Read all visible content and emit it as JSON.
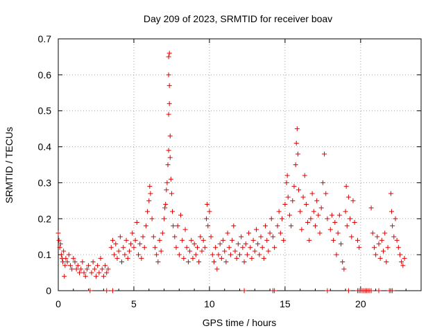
{
  "chart_data": {
    "type": "scatter",
    "title": "Day 209 of 2023, SRMTID for receiver boav",
    "xlabel": "GPS time / hours",
    "ylabel": "SRMTID / TECUs",
    "xlim": [
      0,
      24
    ],
    "ylim": [
      0,
      0.7
    ],
    "xticks": [
      0,
      5,
      10,
      15,
      20
    ],
    "yticks": [
      0,
      0.1,
      0.2,
      0.3,
      0.4,
      0.5,
      0.6,
      0.7
    ],
    "xtick_labels": [
      "0",
      "5",
      "10",
      "15",
      "20"
    ],
    "ytick_labels": [
      "0",
      "0.1",
      "0.2",
      "0.3",
      "0.4",
      "0.5",
      "0.6",
      "0.7"
    ],
    "grid": true,
    "marker": "+",
    "series_color": "#e00000",
    "points": [
      [
        0.0,
        0.16
      ],
      [
        0.05,
        0.14
      ],
      [
        0.1,
        0.12
      ],
      [
        0.15,
        0.13
      ],
      [
        0.2,
        0.1
      ],
      [
        0.25,
        0.09
      ],
      [
        0.3,
        0.08
      ],
      [
        0.35,
        0.11
      ],
      [
        0.4,
        0.04
      ],
      [
        0.45,
        0.07
      ],
      [
        0.5,
        0.09
      ],
      [
        0.6,
        0.08
      ],
      [
        0.7,
        0.1
      ],
      [
        0.8,
        0.07
      ],
      [
        0.9,
        0.06
      ],
      [
        1.0,
        0.09
      ],
      [
        1.1,
        0.08
      ],
      [
        1.2,
        0.06
      ],
      [
        1.3,
        0.07
      ],
      [
        1.4,
        0.05
      ],
      [
        1.5,
        0.06
      ],
      [
        1.6,
        0.08
      ],
      [
        1.7,
        0.05
      ],
      [
        1.8,
        0.04
      ],
      [
        1.9,
        0.06
      ],
      [
        2.0,
        0.07
      ],
      [
        2.2,
        0.05
      ],
      [
        2.3,
        0.08
      ],
      [
        2.4,
        0.06
      ],
      [
        2.5,
        0.04
      ],
      [
        2.6,
        0.07
      ],
      [
        2.7,
        0.05
      ],
      [
        2.8,
        0.09
      ],
      [
        2.9,
        0.06
      ],
      [
        3.0,
        0.04
      ],
      [
        3.1,
        0.07
      ],
      [
        3.2,
        0.05
      ],
      [
        3.3,
        0.06
      ],
      [
        3.5,
        0.12
      ],
      [
        3.6,
        0.14
      ],
      [
        3.7,
        0.1
      ],
      [
        3.8,
        0.13
      ],
      [
        3.9,
        0.09
      ],
      [
        4.0,
        0.11
      ],
      [
        4.1,
        0.15
      ],
      [
        4.2,
        0.08
      ],
      [
        4.3,
        0.12
      ],
      [
        4.4,
        0.1
      ],
      [
        4.5,
        0.14
      ],
      [
        4.6,
        0.09
      ],
      [
        4.7,
        0.11
      ],
      [
        4.8,
        0.13
      ],
      [
        4.9,
        0.16
      ],
      [
        5.0,
        0.12
      ],
      [
        5.1,
        0.14
      ],
      [
        5.2,
        0.19
      ],
      [
        5.3,
        0.1
      ],
      [
        5.4,
        0.13
      ],
      [
        5.5,
        0.09
      ],
      [
        5.6,
        0.15
      ],
      [
        5.7,
        0.12
      ],
      [
        5.8,
        0.18
      ],
      [
        5.9,
        0.22
      ],
      [
        6.0,
        0.25
      ],
      [
        6.05,
        0.29
      ],
      [
        6.1,
        0.27
      ],
      [
        6.2,
        0.2
      ],
      [
        6.3,
        0.15
      ],
      [
        6.4,
        0.12
      ],
      [
        6.5,
        0.1
      ],
      [
        6.6,
        0.08
      ],
      [
        6.7,
        0.14
      ],
      [
        6.8,
        0.11
      ],
      [
        6.9,
        0.16
      ],
      [
        7.0,
        0.2
      ],
      [
        7.05,
        0.23
      ],
      [
        7.1,
        0.24
      ],
      [
        7.15,
        0.28
      ],
      [
        7.2,
        0.3
      ],
      [
        7.25,
        0.35
      ],
      [
        7.3,
        0.39
      ],
      [
        7.3,
        0.49
      ],
      [
        7.35,
        0.52
      ],
      [
        7.35,
        0.57
      ],
      [
        7.3,
        0.6
      ],
      [
        7.3,
        0.65
      ],
      [
        7.35,
        0.66
      ],
      [
        7.4,
        0.43
      ],
      [
        7.4,
        0.37
      ],
      [
        7.45,
        0.31
      ],
      [
        7.5,
        0.27
      ],
      [
        7.55,
        0.22
      ],
      [
        7.6,
        0.18
      ],
      [
        7.7,
        0.15
      ],
      [
        7.8,
        0.12
      ],
      [
        7.9,
        0.18
      ],
      [
        8.0,
        0.1
      ],
      [
        8.1,
        0.21
      ],
      [
        8.2,
        0.14
      ],
      [
        8.3,
        0.09
      ],
      [
        8.4,
        0.17
      ],
      [
        8.5,
        0.12
      ],
      [
        8.6,
        0.08
      ],
      [
        8.7,
        0.11
      ],
      [
        8.8,
        0.14
      ],
      [
        8.9,
        0.09
      ],
      [
        9.0,
        0.13
      ],
      [
        9.1,
        0.1
      ],
      [
        9.2,
        0.12
      ],
      [
        9.3,
        0.08
      ],
      [
        9.4,
        0.15
      ],
      [
        9.5,
        0.11
      ],
      [
        9.6,
        0.14
      ],
      [
        9.7,
        0.12
      ],
      [
        9.8,
        0.2
      ],
      [
        9.85,
        0.24
      ],
      [
        9.9,
        0.18
      ],
      [
        10.0,
        0.22
      ],
      [
        10.1,
        0.15
      ],
      [
        10.2,
        0.1
      ],
      [
        10.3,
        0.08
      ],
      [
        10.4,
        0.12
      ],
      [
        10.5,
        0.06
      ],
      [
        10.6,
        0.1
      ],
      [
        10.7,
        0.13
      ],
      [
        10.8,
        0.09
      ],
      [
        10.9,
        0.14
      ],
      [
        11.0,
        0.11
      ],
      [
        11.1,
        0.08
      ],
      [
        11.2,
        0.16
      ],
      [
        11.3,
        0.12
      ],
      [
        11.4,
        0.1
      ],
      [
        11.5,
        0.14
      ],
      [
        11.6,
        0.18
      ],
      [
        11.7,
        0.11
      ],
      [
        11.8,
        0.09
      ],
      [
        11.9,
        0.13
      ],
      [
        12.0,
        0.1
      ],
      [
        12.1,
        0.15
      ],
      [
        12.2,
        0.12
      ],
      [
        12.3,
        0.08
      ],
      [
        12.4,
        0.13
      ],
      [
        12.5,
        0.1
      ],
      [
        12.6,
        0.16
      ],
      [
        12.7,
        0.12
      ],
      [
        12.8,
        0.09
      ],
      [
        12.9,
        0.14
      ],
      [
        13.0,
        0.11
      ],
      [
        13.1,
        0.17
      ],
      [
        13.2,
        0.13
      ],
      [
        13.3,
        0.1
      ],
      [
        13.4,
        0.15
      ],
      [
        13.5,
        0.12
      ],
      [
        13.6,
        0.09
      ],
      [
        13.7,
        0.18
      ],
      [
        13.8,
        0.14
      ],
      [
        13.9,
        0.11
      ],
      [
        14.0,
        0.16
      ],
      [
        14.1,
        0.2
      ],
      [
        14.2,
        0.15
      ],
      [
        14.3,
        0.12
      ],
      [
        14.5,
        0.18
      ],
      [
        14.6,
        0.22
      ],
      [
        14.7,
        0.16
      ],
      [
        14.8,
        0.2
      ],
      [
        14.9,
        0.14
      ],
      [
        15.0,
        0.24
      ],
      [
        15.1,
        0.3
      ],
      [
        15.15,
        0.32
      ],
      [
        15.2,
        0.26
      ],
      [
        15.3,
        0.21
      ],
      [
        15.4,
        0.18
      ],
      [
        15.5,
        0.25
      ],
      [
        15.6,
        0.29
      ],
      [
        15.7,
        0.35
      ],
      [
        15.75,
        0.41
      ],
      [
        15.8,
        0.45
      ],
      [
        15.85,
        0.38
      ],
      [
        15.9,
        0.28
      ],
      [
        16.0,
        0.22
      ],
      [
        16.1,
        0.17
      ],
      [
        16.2,
        0.26
      ],
      [
        16.3,
        0.32
      ],
      [
        16.4,
        0.24
      ],
      [
        16.5,
        0.19
      ],
      [
        16.6,
        0.14
      ],
      [
        16.7,
        0.2
      ],
      [
        16.8,
        0.27
      ],
      [
        16.9,
        0.22
      ],
      [
        17.0,
        0.18
      ],
      [
        17.1,
        0.25
      ],
      [
        17.2,
        0.21
      ],
      [
        17.3,
        0.16
      ],
      [
        17.4,
        0.23
      ],
      [
        17.5,
        0.3
      ],
      [
        17.6,
        0.38
      ],
      [
        17.7,
        0.27
      ],
      [
        17.8,
        0.2
      ],
      [
        18.0,
        0.17
      ],
      [
        18.1,
        0.21
      ],
      [
        18.2,
        0.14
      ],
      [
        18.3,
        0.19
      ],
      [
        18.4,
        0.1
      ],
      [
        18.5,
        0.16
      ],
      [
        18.6,
        0.21
      ],
      [
        18.7,
        0.13
      ],
      [
        18.8,
        0.08
      ],
      [
        18.9,
        0.06
      ],
      [
        19.0,
        0.22
      ],
      [
        19.05,
        0.29
      ],
      [
        19.1,
        0.18
      ],
      [
        19.2,
        0.26
      ],
      [
        19.3,
        0.2
      ],
      [
        19.4,
        0.15
      ],
      [
        19.5,
        0.25
      ],
      [
        19.6,
        0.19
      ],
      [
        19.8,
        0.14
      ],
      [
        19.9,
        0.12
      ],
      [
        20.7,
        0.23
      ],
      [
        20.8,
        0.16
      ],
      [
        20.9,
        0.12
      ],
      [
        21.0,
        0.1
      ],
      [
        21.1,
        0.15
      ],
      [
        21.2,
        0.13
      ],
      [
        21.3,
        0.09
      ],
      [
        21.4,
        0.14
      ],
      [
        21.5,
        0.11
      ],
      [
        21.6,
        0.16
      ],
      [
        21.7,
        0.08
      ],
      [
        21.8,
        0.12
      ],
      [
        22.0,
        0.27
      ],
      [
        22.05,
        0.22
      ],
      [
        22.1,
        0.18
      ],
      [
        22.2,
        0.15
      ],
      [
        22.3,
        0.2
      ],
      [
        22.4,
        0.14
      ],
      [
        22.5,
        0.12
      ],
      [
        22.6,
        0.1
      ],
      [
        22.7,
        0.08
      ],
      [
        22.8,
        0.07
      ],
      [
        22.9,
        0.09
      ],
      [
        2.1,
        0.0
      ],
      [
        3.2,
        0.0
      ],
      [
        3.6,
        0.0
      ],
      [
        12.3,
        0.0
      ],
      [
        14.2,
        0.0
      ],
      [
        14.3,
        0.0
      ],
      [
        17.8,
        0.0
      ],
      [
        19.2,
        0.0
      ],
      [
        19.8,
        0.0
      ],
      [
        19.9,
        0.0
      ],
      [
        20.0,
        0.0
      ],
      [
        20.1,
        0.0
      ],
      [
        20.2,
        0.0
      ],
      [
        20.3,
        0.0
      ],
      [
        20.4,
        0.0
      ],
      [
        20.5,
        0.0
      ],
      [
        20.6,
        0.0
      ],
      [
        20.7,
        0.0
      ],
      [
        21.2,
        0.0
      ],
      [
        21.9,
        0.0
      ],
      [
        22.0,
        0.0
      ],
      [
        22.1,
        0.0
      ]
    ]
  }
}
